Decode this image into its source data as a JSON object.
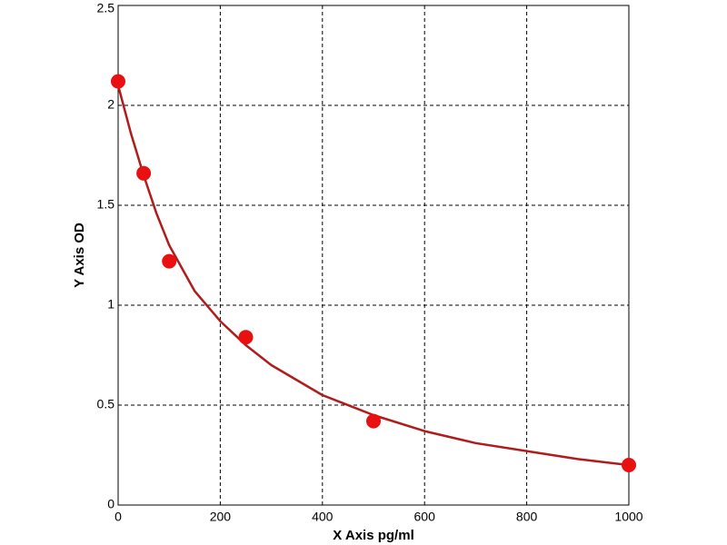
{
  "chart_data": {
    "type": "scatter",
    "x_label": "X Axis pg/ml",
    "y_label": "Y Axis OD",
    "x": [
      0,
      50,
      100,
      250,
      500,
      1000
    ],
    "values": [
      2.12,
      1.66,
      1.22,
      0.84,
      0.42,
      0.2
    ],
    "color": "#e81010",
    "fit": {
      "color": "#b01c1c",
      "x": [
        0,
        25,
        50,
        75,
        100,
        150,
        200,
        250,
        300,
        400,
        500,
        600,
        700,
        800,
        900,
        1000
      ],
      "values": [
        2.1,
        1.86,
        1.65,
        1.46,
        1.3,
        1.07,
        0.92,
        0.8,
        0.7,
        0.55,
        0.45,
        0.37,
        0.31,
        0.27,
        0.23,
        0.2
      ]
    },
    "xlim": [
      0,
      1000
    ],
    "ylim": [
      0,
      2.5
    ],
    "xticks": [
      0,
      200,
      400,
      600,
      800,
      1000
    ],
    "yticks": [
      0,
      0.5,
      1,
      1.5,
      2,
      2.5
    ],
    "grid": true
  }
}
